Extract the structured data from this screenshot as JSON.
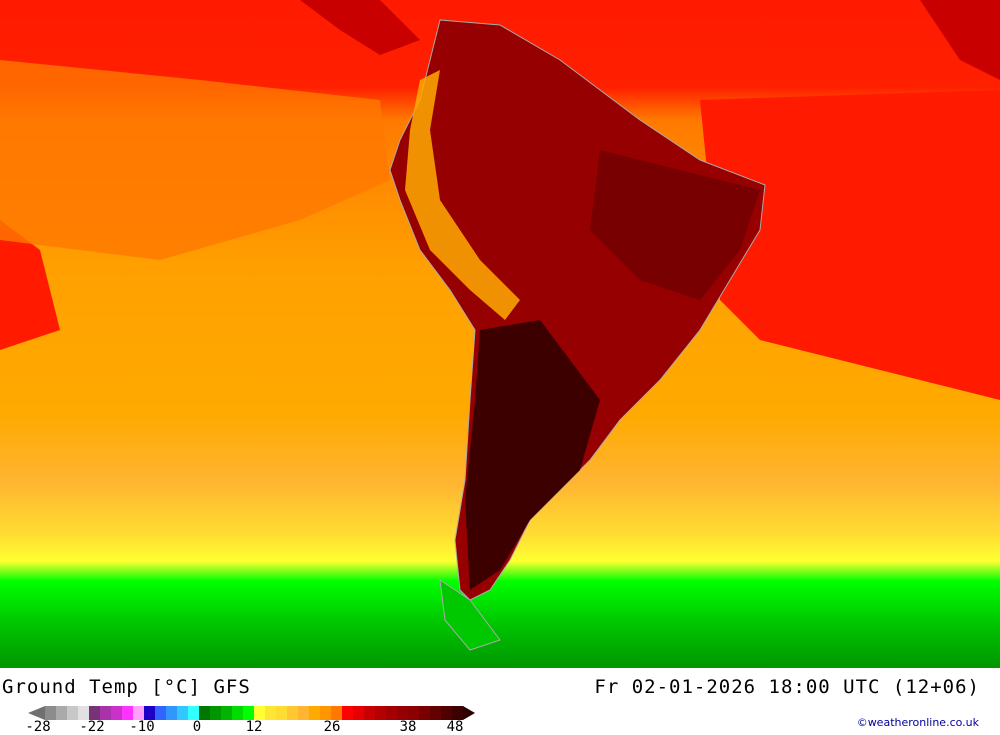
{
  "title": "Ground Temp [°C] GFS",
  "datetime": "Fr 02-01-2026 18:00 UTC (12+06)",
  "credit": "©weatheronline.co.uk",
  "legend": {
    "ticks": [
      "-28",
      "-22",
      "-10",
      "0",
      "12",
      "26",
      "38",
      "48"
    ],
    "colors": [
      "#8c8c8c",
      "#aaaaaa",
      "#c8c8c8",
      "#e1e1e1",
      "#783278",
      "#aa32aa",
      "#c832c8",
      "#ff32ff",
      "#ffa0ff",
      "#1e00c8",
      "#3264ff",
      "#3296ff",
      "#32c8ff",
      "#32ffff",
      "#007800",
      "#009600",
      "#00b400",
      "#00dc00",
      "#00ff00",
      "#ffff32",
      "#ffe632",
      "#ffdc32",
      "#ffc832",
      "#ffb432",
      "#ffaa00",
      "#ff9600",
      "#ff7800",
      "#ff0000",
      "#e60000",
      "#c80000",
      "#b40000",
      "#a50000",
      "#960000",
      "#8c0000",
      "#780000",
      "#640000",
      "#500000",
      "#3c0000"
    ]
  }
}
